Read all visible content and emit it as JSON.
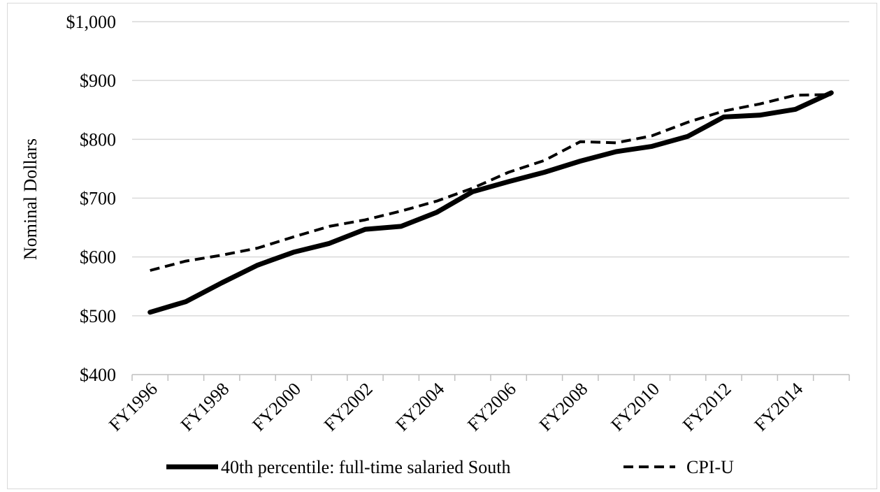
{
  "chart_data": {
    "type": "line",
    "title": "",
    "xlabel": "",
    "ylabel": "Nominal Dollars",
    "ylim": [
      400,
      1000
    ],
    "y_ticks": [
      400,
      500,
      600,
      700,
      800,
      900,
      1000
    ],
    "y_tick_labels": [
      "$400",
      "$500",
      "$600",
      "$700",
      "$800",
      "$900",
      "$1,000"
    ],
    "x": [
      "FY1996",
      "FY1997",
      "FY1998",
      "FY1999",
      "FY2000",
      "FY2001",
      "FY2002",
      "FY2003",
      "FY2004",
      "FY2005",
      "FY2006",
      "FY2007",
      "FY2008",
      "FY2009",
      "FY2010",
      "FY2011",
      "FY2012",
      "FY2013",
      "FY2014",
      "FY2015"
    ],
    "x_tick_labels": [
      "FY1996",
      "",
      "FY1998",
      "",
      "FY2000",
      "",
      "FY2002",
      "",
      "FY2004",
      "",
      "FY2006",
      "",
      "FY2008",
      "",
      "FY2010",
      "",
      "FY2012",
      "",
      "FY2014",
      ""
    ],
    "grid": true,
    "legend_position": "bottom",
    "series": [
      {
        "name": "40th percentile: full-time salaried South",
        "style": "solid",
        "color": "#000000",
        "values": [
          506,
          524,
          556,
          586,
          608,
          623,
          647,
          652,
          676,
          711,
          728,
          744,
          763,
          779,
          788,
          805,
          838,
          841,
          851,
          879
        ]
      },
      {
        "name": "CPI-U",
        "style": "dashed",
        "color": "#000000",
        "values": [
          577,
          593,
          603,
          615,
          634,
          652,
          663,
          678,
          695,
          717,
          744,
          764,
          796,
          794,
          806,
          829,
          848,
          860,
          875,
          876
        ]
      }
    ]
  }
}
